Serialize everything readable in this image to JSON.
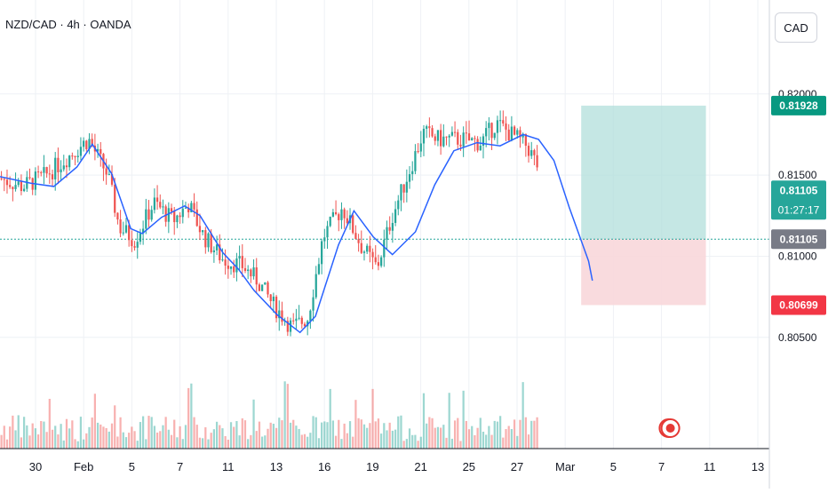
{
  "header": {
    "symbol_line": "NZD/CAD · 4h · OANDA",
    "currency_button": "CAD"
  },
  "colors": {
    "up": "#26a69a",
    "down": "#ef5350",
    "ma_line": "#2962ff",
    "profit_zone": "#b2dfdb",
    "loss_zone": "#f8d7da",
    "grid": "#eef1f5",
    "axis_text": "#131722"
  },
  "chart_data": {
    "type": "candlestick",
    "x_labels": [
      "30",
      "Feb",
      "5",
      "7",
      "11",
      "13",
      "16",
      "19",
      "21",
      "25",
      "27",
      "Mar",
      "5",
      "7",
      "11",
      "13"
    ],
    "y_ticks": [
      "0.82000",
      "0.81500",
      "0.81000",
      "0.80500"
    ],
    "y_range": [
      0.8005,
      0.8236
    ],
    "price_tags": [
      {
        "label": "0.81928",
        "value": 0.81928,
        "kind": "target",
        "color": "#089981"
      },
      {
        "label": "0.81105",
        "sublabel": "01:27:17",
        "value": 0.81105,
        "kind": "last",
        "color": "#26a69a",
        "offset": "above"
      },
      {
        "label": "0.81105",
        "value": 0.81105,
        "kind": "entry",
        "color": "#787b86"
      },
      {
        "label": "0.80699",
        "value": 0.80699,
        "kind": "stop",
        "color": "#f23645"
      }
    ],
    "position": {
      "entry": 0.81105,
      "target": 0.81928,
      "stop": 0.80699,
      "start_x": "Mar",
      "end_x": "11"
    },
    "moving_average_path": [
      [
        0.0,
        0.8149
      ],
      [
        0.04,
        0.8145
      ],
      [
        0.07,
        0.8143
      ],
      [
        0.1,
        0.8155
      ],
      [
        0.12,
        0.8169
      ],
      [
        0.145,
        0.8151
      ],
      [
        0.17,
        0.8117
      ],
      [
        0.185,
        0.8114
      ],
      [
        0.21,
        0.8124
      ],
      [
        0.24,
        0.8131
      ],
      [
        0.26,
        0.8125
      ],
      [
        0.29,
        0.8102
      ],
      [
        0.31,
        0.8092
      ],
      [
        0.33,
        0.8079
      ],
      [
        0.36,
        0.8064
      ],
      [
        0.39,
        0.8053
      ],
      [
        0.41,
        0.8063
      ],
      [
        0.44,
        0.8107
      ],
      [
        0.46,
        0.8128
      ],
      [
        0.485,
        0.8112
      ],
      [
        0.51,
        0.8101
      ],
      [
        0.54,
        0.8115
      ],
      [
        0.565,
        0.8144
      ],
      [
        0.59,
        0.8165
      ],
      [
        0.62,
        0.817
      ],
      [
        0.65,
        0.8168
      ],
      [
        0.68,
        0.8175
      ],
      [
        0.7,
        0.8172
      ],
      [
        0.72,
        0.8159
      ],
      [
        0.74,
        0.813
      ],
      [
        0.765,
        0.8097
      ],
      [
        0.77,
        0.8085
      ]
    ],
    "candle_anchors": [
      [
        0.0,
        0.8148
      ],
      [
        0.03,
        0.8143
      ],
      [
        0.06,
        0.815
      ],
      [
        0.09,
        0.8162
      ],
      [
        0.115,
        0.8172
      ],
      [
        0.14,
        0.815
      ],
      [
        0.155,
        0.8118
      ],
      [
        0.175,
        0.811
      ],
      [
        0.2,
        0.8133
      ],
      [
        0.225,
        0.8122
      ],
      [
        0.245,
        0.8132
      ],
      [
        0.265,
        0.8112
      ],
      [
        0.29,
        0.8098
      ],
      [
        0.315,
        0.8094
      ],
      [
        0.335,
        0.8085
      ],
      [
        0.355,
        0.807
      ],
      [
        0.38,
        0.8056
      ],
      [
        0.4,
        0.8062
      ],
      [
        0.42,
        0.8112
      ],
      [
        0.445,
        0.813
      ],
      [
        0.47,
        0.8106
      ],
      [
        0.49,
        0.8093
      ],
      [
        0.51,
        0.8125
      ],
      [
        0.53,
        0.815
      ],
      [
        0.55,
        0.8176
      ],
      [
        0.57,
        0.8172
      ],
      [
        0.6,
        0.8172
      ],
      [
        0.625,
        0.817
      ],
      [
        0.645,
        0.8182
      ],
      [
        0.665,
        0.8175
      ],
      [
        0.685,
        0.8168
      ],
      [
        0.705,
        0.815
      ],
      [
        0.725,
        0.812
      ],
      [
        0.74,
        0.8088
      ],
      [
        0.755,
        0.8095
      ],
      [
        0.77,
        0.8099
      ]
    ],
    "volume_profile": [
      0.3,
      0.8
    ]
  }
}
